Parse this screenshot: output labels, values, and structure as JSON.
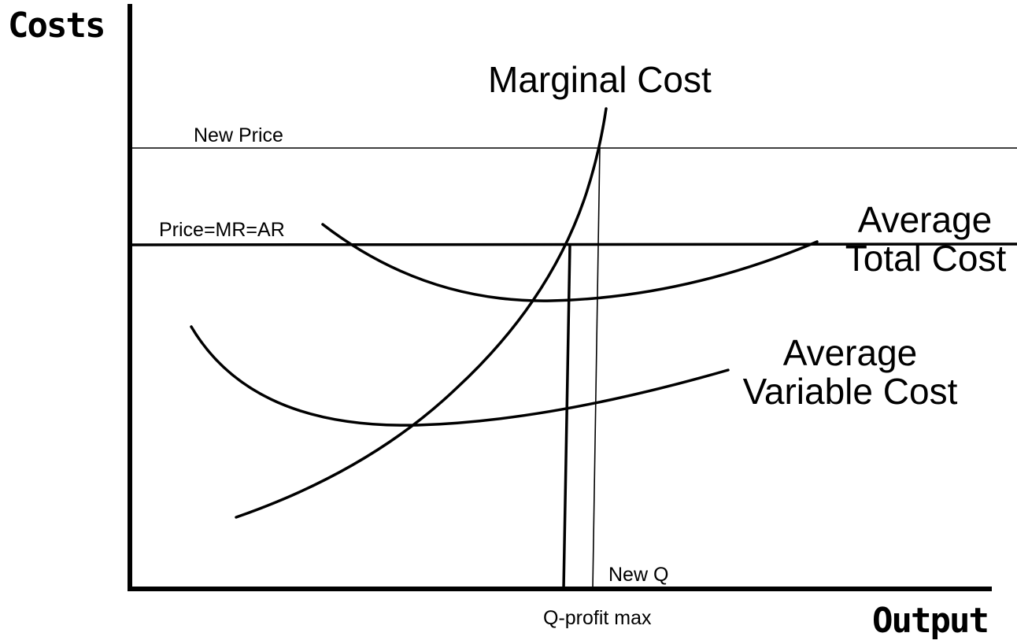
{
  "axes": {
    "y_title": "Costs",
    "x_title": "Output"
  },
  "lines": {
    "new_price": "New Price",
    "price_mr_ar": "Price=MR=AR"
  },
  "curves": {
    "marginal_cost": "Marginal Cost",
    "atc_line1": "Average",
    "atc_line2": "Total Cost",
    "avc_line1": "Average",
    "avc_line2": "Variable Cost"
  },
  "quantities": {
    "new_q": "New Q",
    "q_profit_max": "Q-profit max"
  }
}
